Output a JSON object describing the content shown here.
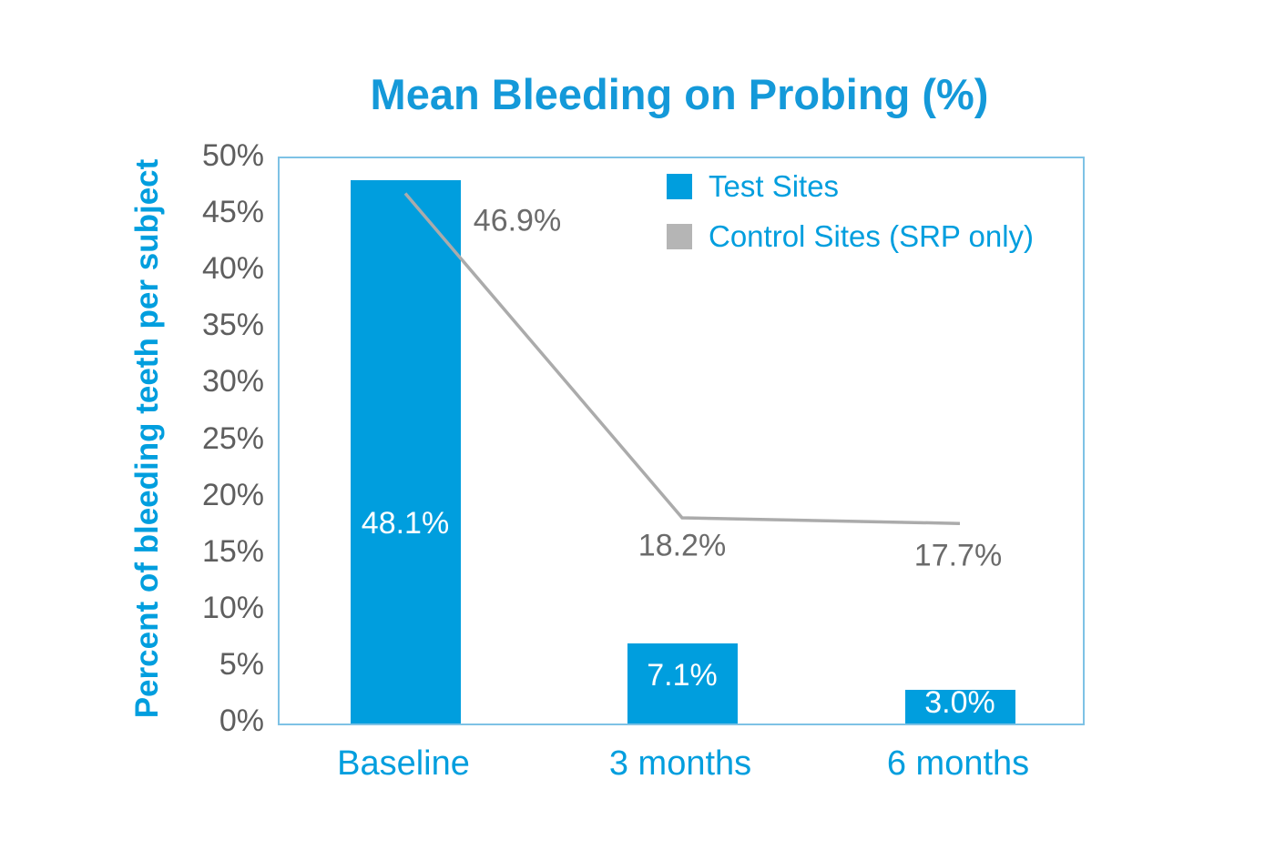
{
  "chart_data": {
    "type": "combo",
    "title": "Mean Bleeding on Probing (%)",
    "ylabel": "Percent of bleeding teeth per subject",
    "xlabel": "",
    "categories": [
      "Baseline",
      "3 months",
      "6 months"
    ],
    "series": [
      {
        "name": "Test Sites",
        "type": "bar",
        "color": "#009EDE",
        "values": [
          48.1,
          7.1,
          3.0
        ],
        "data_labels": [
          "48.1%",
          "7.1%",
          "3.0%"
        ]
      },
      {
        "name": "Control Sites (SRP only)",
        "type": "line",
        "color": "#ABABAB",
        "swatch_color": "#B5B5B5",
        "values": [
          46.9,
          18.2,
          17.7
        ],
        "data_labels": [
          "46.9%",
          "18.2%",
          "17.7%"
        ]
      }
    ],
    "ylim": [
      0,
      50
    ],
    "ytick_labels": [
      "0%",
      "5%",
      "10%",
      "15%",
      "20%",
      "25%",
      "30%",
      "35%",
      "40%",
      "45%",
      "50%"
    ],
    "grid": false,
    "legend_position": "inside-top-center"
  },
  "colors": {
    "accent_blue": "#009EDE",
    "title_blue": "#1499D9",
    "line_gray": "#ABABAB",
    "legend_swatch_gray": "#B5B5B5",
    "tick_text_gray": "#5E5E5E",
    "data_label_gray": "#6B6B6B",
    "plot_border_blue": "#7EC2E5",
    "background": "#FFFFFF"
  }
}
